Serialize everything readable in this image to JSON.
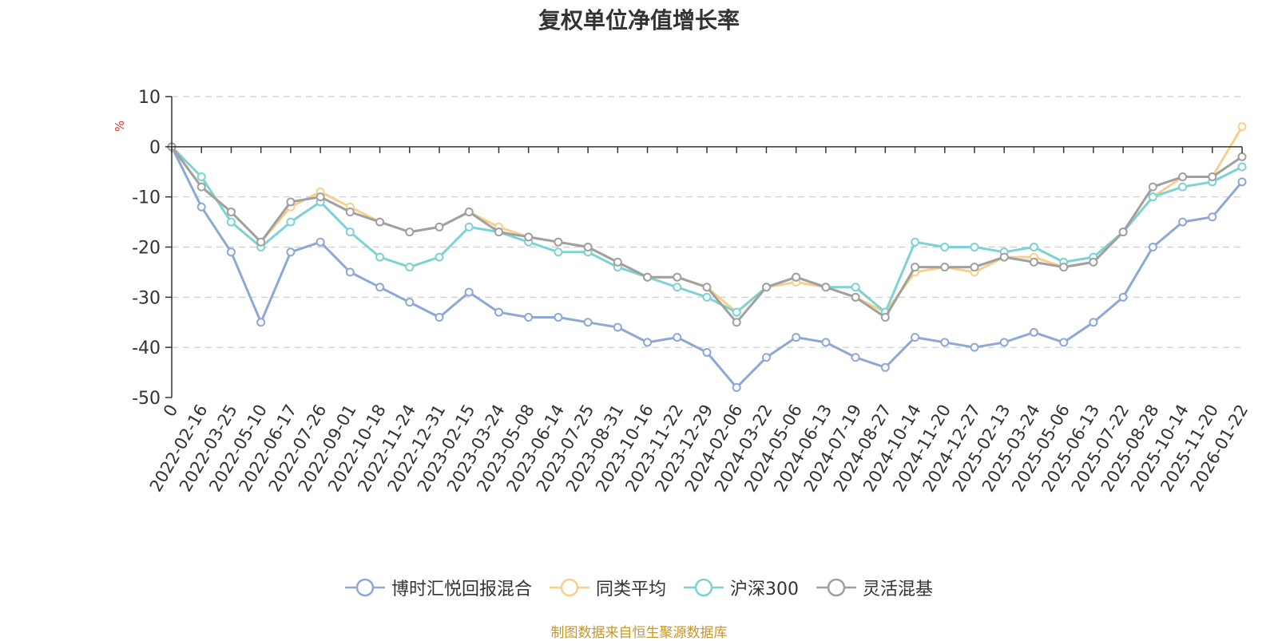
{
  "chart_data": {
    "type": "line",
    "title": "复权单位净值增长率",
    "ylabel": "%",
    "xlabel": "",
    "ylim": [
      -50,
      10
    ],
    "yticks": [
      10,
      0,
      -10,
      -20,
      -30,
      -40,
      -50
    ],
    "grid": true,
    "legend_position": "bottom",
    "x_tick_labels": [
      "0",
      "2022-02-16",
      "2022-03-25",
      "2022-05-10",
      "2022-06-17",
      "2022-07-26",
      "2022-09-01",
      "2022-10-18",
      "2022-11-24",
      "2022-12-31",
      "2023-02-15",
      "2023-03-24",
      "2023-05-08",
      "2023-06-14",
      "2023-07-25",
      "2023-08-31",
      "2023-10-16",
      "2023-11-22",
      "2023-12-29",
      "2024-02-06",
      "2024-03-22",
      "2024-05-06",
      "2024-06-13",
      "2024-07-19",
      "2024-08-27",
      "2024-10-14",
      "2024-11-20",
      "2024-12-27",
      "2025-02-13",
      "2025-03-24",
      "2025-05-06",
      "2025-06-13",
      "2025-07-22",
      "2025-08-28",
      "2025-10-14",
      "2025-11-20",
      "2026-01-22"
    ],
    "series": [
      {
        "name": "博时汇悦回报混合",
        "color": "#8ea8d6",
        "values": [
          0,
          -12,
          -21,
          -35,
          -21,
          -19,
          -25,
          -28,
          -31,
          -34,
          -29,
          -33,
          -34,
          -34,
          -35,
          -36,
          -39,
          -38,
          -41,
          -48,
          -42,
          -38,
          -39,
          -42,
          -44,
          -38,
          -39,
          -40,
          -39,
          -37,
          -39,
          -35,
          -30,
          -20,
          -15,
          -14,
          -7
        ]
      },
      {
        "name": "同类平均",
        "color": "#f8d08c",
        "values": [
          0,
          -8,
          -13,
          -19,
          -12,
          -9,
          -12,
          -15,
          -17,
          -16,
          -13,
          -16,
          -18,
          -19,
          -20,
          -23,
          -26,
          -26,
          -28,
          -33,
          -28,
          -27,
          -28,
          -30,
          -33,
          -25,
          -24,
          -25,
          -22,
          -22,
          -24,
          -23,
          -17,
          -10,
          -6,
          -6,
          4
        ]
      },
      {
        "name": "沪深300",
        "color": "#7dd2d3",
        "values": [
          0,
          -6,
          -15,
          -20,
          -15,
          -11,
          -17,
          -22,
          -24,
          -22,
          -16,
          -17,
          -19,
          -21,
          -21,
          -24,
          -26,
          -28,
          -30,
          -33,
          -28,
          -26,
          -28,
          -28,
          -33,
          -19,
          -20,
          -20,
          -21,
          -20,
          -23,
          -22,
          -17,
          -10,
          -8,
          -7,
          -4
        ]
      },
      {
        "name": "灵活混基",
        "color": "#a0a0a0",
        "values": [
          0,
          -8,
          -13,
          -19,
          -11,
          -10,
          -13,
          -15,
          -17,
          -16,
          -13,
          -17,
          -18,
          -19,
          -20,
          -23,
          -26,
          -26,
          -28,
          -35,
          -28,
          -26,
          -28,
          -30,
          -34,
          -24,
          -24,
          -24,
          -22,
          -23,
          -24,
          -23,
          -17,
          -8,
          -6,
          -6,
          -2
        ]
      }
    ]
  },
  "source_note": "制图数据来自恒生聚源数据库"
}
